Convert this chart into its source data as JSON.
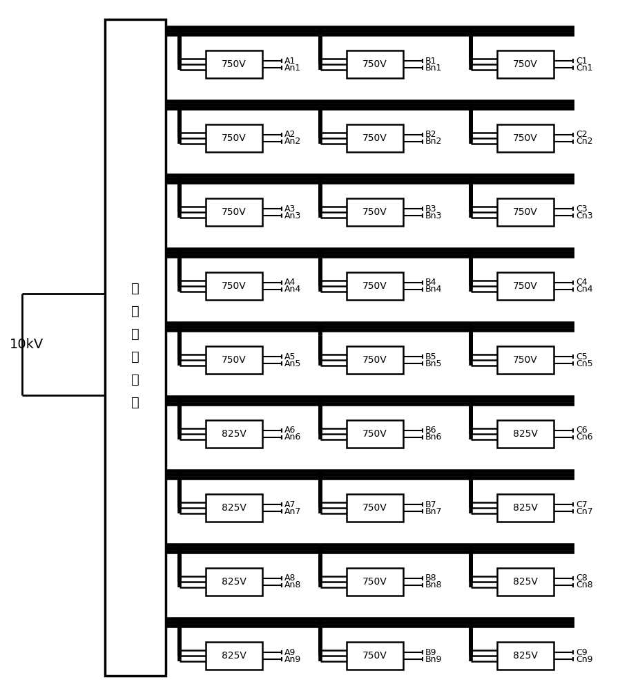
{
  "n_rows": 9,
  "voltages_A": [
    "750V",
    "750V",
    "750V",
    "750V",
    "750V",
    "825V",
    "825V",
    "825V",
    "825V"
  ],
  "voltages_B": [
    "750V",
    "750V",
    "750V",
    "750V",
    "750V",
    "750V",
    "750V",
    "750V",
    "750V"
  ],
  "voltages_C": [
    "750V",
    "750V",
    "750V",
    "750V",
    "750V",
    "825V",
    "825V",
    "825V",
    "825V"
  ],
  "labels_A_pos": [
    "A1",
    "A2",
    "A3",
    "A4",
    "A5",
    "A6",
    "A7",
    "A8",
    "A9"
  ],
  "labels_A_neg": [
    "An1",
    "An2",
    "An3",
    "An4",
    "An5",
    "An6",
    "An7",
    "An8",
    "An9"
  ],
  "labels_B_pos": [
    "B1",
    "B2",
    "B3",
    "B4",
    "B5",
    "B6",
    "B7",
    "B8",
    "B9"
  ],
  "labels_B_neg": [
    "Bn1",
    "Bn2",
    "Bn3",
    "Bn4",
    "Bn5",
    "Bn6",
    "Bn7",
    "Bn8",
    "Bn9"
  ],
  "labels_C_pos": [
    "C1",
    "C2",
    "C3",
    "C4",
    "C5",
    "C6",
    "C7",
    "C8",
    "C9"
  ],
  "labels_C_neg": [
    "Cn1",
    "Cn2",
    "Cn3",
    "Cn4",
    "Cn5",
    "Cn6",
    "Cn7",
    "Cn8",
    "Cn9"
  ],
  "transformer_label": "多绕组变压器",
  "source_label": "10kV",
  "bg_color": "#ffffff",
  "line_color": "#000000",
  "box_color": "#ffffff",
  "font_size_box": 10,
  "font_size_label": 9,
  "font_size_source": 14,
  "font_size_tx": 14
}
